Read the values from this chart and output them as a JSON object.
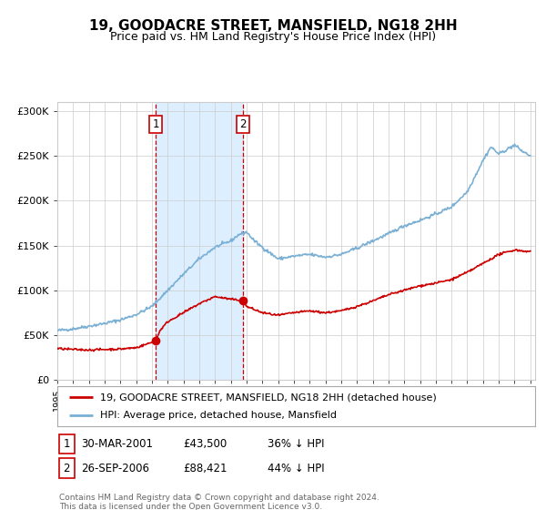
{
  "title": "19, GOODACRE STREET, MANSFIELD, NG18 2HH",
  "subtitle": "Price paid vs. HM Land Registry's House Price Index (HPI)",
  "ylim": [
    0,
    310000
  ],
  "yticks": [
    0,
    50000,
    100000,
    150000,
    200000,
    250000,
    300000
  ],
  "hpi_color": "#7ab0d4",
  "price_color": "#cc0000",
  "shaded_region_color": "#ddeeff",
  "sale1_date": 2001.25,
  "sale2_date": 2006.75,
  "sale1_price": 43500,
  "sale2_price": 88421,
  "legend_property": "19, GOODACRE STREET, MANSFIELD, NG18 2HH (detached house)",
  "legend_hpi": "HPI: Average price, detached house, Mansfield",
  "table_row1": [
    "1",
    "30-MAR-2001",
    "£43,500",
    "36% ↓ HPI"
  ],
  "table_row2": [
    "2",
    "26-SEP-2006",
    "£88,421",
    "44% ↓ HPI"
  ],
  "footnote": "Contains HM Land Registry data © Crown copyright and database right 2024.\nThis data is licensed under the Open Government Licence v3.0.",
  "hpi_anchors_x": [
    1995,
    1996,
    1997,
    1998,
    1999,
    2000,
    2001,
    2002,
    2003,
    2004,
    2005,
    2006,
    2006.5,
    2007,
    2007.5,
    2008,
    2009,
    2010,
    2011,
    2012,
    2013,
    2014,
    2015,
    2016,
    2017,
    2018,
    2019,
    2020,
    2021,
    2022,
    2022.5,
    2023,
    2024,
    2024.5,
    2025
  ],
  "hpi_anchors_y": [
    55000,
    57000,
    60000,
    63000,
    67000,
    73000,
    82000,
    100000,
    118000,
    135000,
    148000,
    155000,
    162000,
    165000,
    155000,
    148000,
    135000,
    138000,
    140000,
    137000,
    140000,
    147000,
    155000,
    163000,
    172000,
    178000,
    185000,
    193000,
    210000,
    245000,
    260000,
    252000,
    262000,
    255000,
    250000
  ],
  "price_anchors_x": [
    1995,
    1996,
    1997,
    1998,
    1999,
    2000,
    2001,
    2001.25,
    2001.5,
    2002,
    2003,
    2004,
    2005,
    2006,
    2006.75,
    2007,
    2008,
    2009,
    2010,
    2011,
    2012,
    2013,
    2014,
    2015,
    2016,
    2017,
    2018,
    2019,
    2020,
    2021,
    2022,
    2023,
    2024,
    2025
  ],
  "price_anchors_y": [
    35000,
    34000,
    33500,
    34000,
    34500,
    36000,
    42000,
    43500,
    55000,
    65000,
    75000,
    85000,
    93000,
    90000,
    88421,
    82000,
    75000,
    72000,
    75000,
    77000,
    75000,
    77000,
    82000,
    88000,
    95000,
    100000,
    105000,
    108000,
    112000,
    120000,
    130000,
    140000,
    145000,
    143000
  ],
  "background_color": "#ffffff"
}
